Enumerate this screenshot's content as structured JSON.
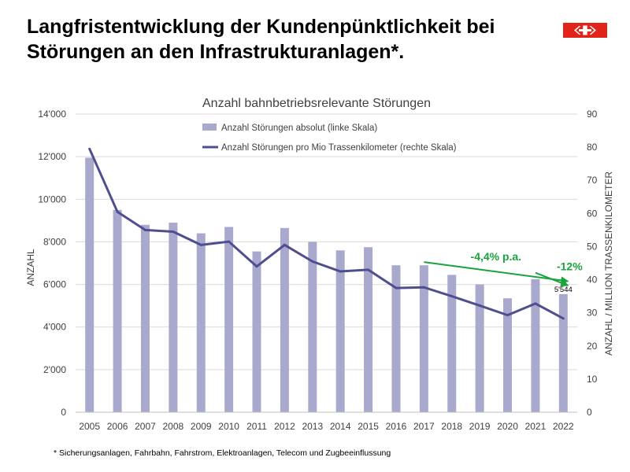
{
  "page": {
    "headline": "Langfristentwicklung der Kundenpünktlichkeit bei Störungen an den Infrastrukturanlagen*.",
    "footnote": "* Sicherungsanlagen, Fahrbahn, Fahrstrom, Elektroanlagen, Telecom und Zugbeeinflussung",
    "logo": {
      "name": "sbb-logo",
      "color": "#e2231a"
    }
  },
  "chart_data": {
    "type": "bar",
    "title": "Anzahl bahnbetriebsrelevante Störungen",
    "categories": [
      "2005",
      "2006",
      "2007",
      "2008",
      "2009",
      "2010",
      "2011",
      "2012",
      "2013",
      "2014",
      "2015",
      "2016",
      "2017",
      "2018",
      "2019",
      "2020",
      "2021",
      "2022"
    ],
    "y_left": {
      "label": "ANZAHL",
      "ylim": [
        0,
        14000
      ],
      "ticks": [
        "0",
        "2'000",
        "4'000",
        "6'000",
        "8'000",
        "10'000",
        "12'000",
        "14'000"
      ]
    },
    "y_right": {
      "label": "ANZAHL / MILLION TRASSENKILOMETER",
      "ylim": [
        0,
        90
      ],
      "ticks": [
        "0",
        "10",
        "20",
        "30",
        "40",
        "50",
        "60",
        "70",
        "80",
        "90"
      ]
    },
    "grid": true,
    "legend_position": "top-center",
    "series": [
      {
        "name": "Anzahl Störungen absolut (linke Skala)",
        "type": "bar",
        "axis": "left",
        "color": "#a9a9cd",
        "values": [
          11950,
          9500,
          8800,
          8900,
          8400,
          8700,
          7550,
          8650,
          8000,
          7600,
          7750,
          6900,
          6900,
          6450,
          6000,
          5350,
          6250,
          5544
        ]
      },
      {
        "name": "Anzahl Störungen pro Mio Trassenkilometer (rechte Skala)",
        "type": "line",
        "axis": "right",
        "color": "#4f4f8f",
        "values": [
          79.5,
          60.5,
          55,
          54.5,
          50.5,
          51.5,
          44,
          50.5,
          45.5,
          42.5,
          43,
          37.5,
          37.7,
          35,
          32.2,
          29.3,
          32.8,
          28.3
        ]
      }
    ],
    "data_labels": [
      {
        "series": 0,
        "index": 17,
        "text": "5'544"
      }
    ],
    "annotations": [
      {
        "text": "-4,4% p.a.",
        "color": "#1aa33a",
        "from": {
          "x": "2017",
          "y": 7050
        },
        "to": {
          "x": "2022",
          "y": 6150
        }
      },
      {
        "text": "-12%",
        "color": "#1aa33a",
        "from": {
          "x": "2021",
          "y": 6550
        },
        "to": {
          "x": "2022",
          "y": 5950
        }
      }
    ]
  }
}
